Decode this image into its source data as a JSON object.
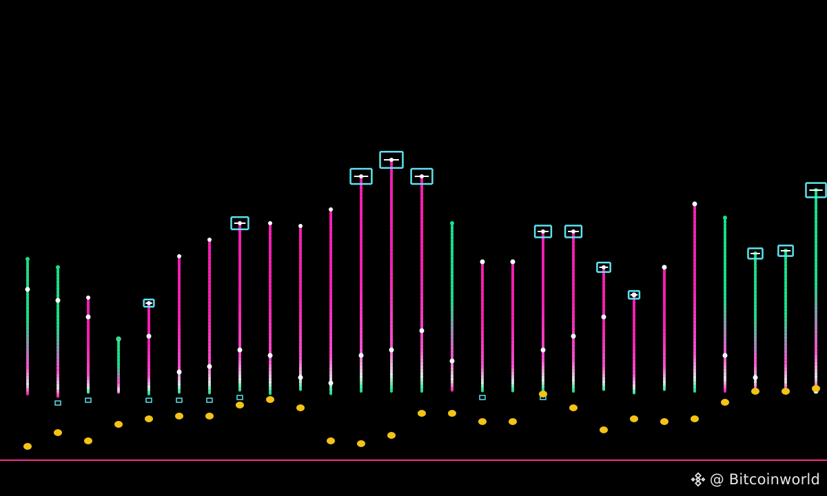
{
  "watermark": {
    "text": "@ Bitcoinworld",
    "icon": "binance-diamond-icon"
  },
  "colors": {
    "background": "#000000",
    "green": "#19e08a",
    "pink": "#ff1fb4",
    "white": "#ffffff",
    "cyan": "#5fe3f0",
    "gold": "#f3c316",
    "baseline": "#ff2b8a"
  },
  "chart_data": {
    "type": "scatter",
    "title": "",
    "xlabel": "",
    "ylabel": "",
    "grid": false,
    "legend": "none",
    "xlim": [
      0,
      28
    ],
    "ylim": [
      0,
      100
    ],
    "baseline": 0,
    "x": [
      1,
      2,
      3,
      4,
      5,
      6,
      7,
      8,
      9,
      10,
      11,
      12,
      13,
      14,
      15,
      16,
      17,
      18,
      19,
      20,
      21,
      22,
      23,
      24,
      25,
      26,
      27,
      28
    ],
    "lines": [
      {
        "top": 73,
        "bottom": 24,
        "highlight": 62,
        "cap": false,
        "color": "green"
      },
      {
        "top": 70,
        "bottom": 23,
        "highlight": 58,
        "cap": false,
        "color": "green"
      },
      {
        "top": 59,
        "bottom": 24,
        "highlight": 52,
        "cap": false,
        "color": "pink"
      },
      {
        "top": 44,
        "bottom": 24,
        "highlight": 44,
        "cap": false,
        "color": "green"
      },
      {
        "top": 57,
        "bottom": 24,
        "highlight": 45,
        "cap": true,
        "color": "pink"
      },
      {
        "top": 74,
        "bottom": 24,
        "highlight": 32,
        "cap": false,
        "color": "pink"
      },
      {
        "top": 80,
        "bottom": 24,
        "highlight": 34,
        "cap": false,
        "color": "pink"
      },
      {
        "top": 86,
        "bottom": 25,
        "highlight": 40,
        "cap": true,
        "color": "pink"
      },
      {
        "top": 86,
        "bottom": 24,
        "highlight": 38,
        "cap": false,
        "color": "pink"
      },
      {
        "top": 85,
        "bottom": 25,
        "highlight": 30,
        "cap": false,
        "color": "pink"
      },
      {
        "top": 91,
        "bottom": 24,
        "highlight": 28,
        "cap": false,
        "color": "pink"
      },
      {
        "top": 103,
        "bottom": 25,
        "highlight": 38,
        "cap": true,
        "color": "pink"
      },
      {
        "top": 109,
        "bottom": 25,
        "highlight": 40,
        "cap": true,
        "color": "pink"
      },
      {
        "top": 103,
        "bottom": 25,
        "highlight": 47,
        "cap": true,
        "color": "pink"
      },
      {
        "top": 86,
        "bottom": 25,
        "highlight": 36,
        "cap": false,
        "color": "green"
      },
      {
        "top": 72,
        "bottom": 25,
        "highlight": 72,
        "cap": false,
        "color": "pink"
      },
      {
        "top": 72,
        "bottom": 25,
        "highlight": 72,
        "cap": false,
        "color": "pink"
      },
      {
        "top": 83,
        "bottom": 25,
        "highlight": 40,
        "cap": true,
        "color": "pink"
      },
      {
        "top": 83,
        "bottom": 25,
        "highlight": 45,
        "cap": true,
        "color": "pink"
      },
      {
        "top": 70,
        "bottom": 25,
        "highlight": 52,
        "cap": true,
        "color": "pink"
      },
      {
        "top": 60,
        "bottom": 24,
        "highlight": 60,
        "cap": true,
        "color": "pink"
      },
      {
        "top": 70,
        "bottom": 25,
        "highlight": 70,
        "cap": false,
        "color": "pink"
      },
      {
        "top": 93,
        "bottom": 25,
        "highlight": 93,
        "cap": false,
        "color": "pink"
      },
      {
        "top": 88,
        "bottom": 25,
        "highlight": 38,
        "cap": false,
        "color": "green"
      },
      {
        "top": 75,
        "bottom": 25,
        "highlight": 30,
        "cap": true,
        "color": "green"
      },
      {
        "top": 76,
        "bottom": 25,
        "highlight": 25,
        "cap": true,
        "color": "green"
      },
      {
        "top": 98,
        "bottom": 25,
        "highlight": 25,
        "cap": true,
        "color": "green"
      },
      {
        "top": 98,
        "bottom": 25,
        "highlight": 30,
        "cap": true,
        "color": "green"
      }
    ],
    "dots": [
      5,
      10,
      7,
      13,
      15,
      16,
      16,
      20,
      22,
      19,
      7,
      6,
      9,
      17,
      17,
      14,
      14,
      24,
      19,
      11,
      15,
      14,
      15,
      21,
      25,
      25,
      26,
      24
    ],
    "bottom_markers": [
      false,
      true,
      true,
      false,
      true,
      true,
      true,
      true,
      false,
      false,
      false,
      false,
      false,
      false,
      false,
      true,
      false,
      true,
      false,
      false,
      false,
      false,
      false,
      false,
      false,
      false,
      false,
      false
    ]
  }
}
